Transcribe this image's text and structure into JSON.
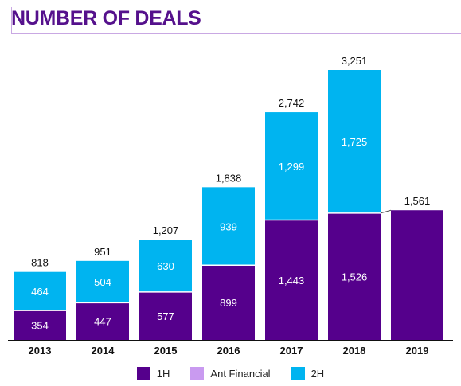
{
  "title": "NUMBER OF DEALS",
  "colors": {
    "h1": "#55008c",
    "ant": "#c99af0",
    "h2": "#00b4f0",
    "text": "#111111",
    "title": "#55118c"
  },
  "legend": [
    {
      "label": "1H",
      "color": "#55008c"
    },
    {
      "label": "Ant Financial",
      "color": "#c99af0"
    },
    {
      "label": "2H",
      "color": "#00b4f0"
    }
  ],
  "chart_data": {
    "type": "bar",
    "stacked": true,
    "title": "NUMBER OF DEALS",
    "xlabel": "",
    "ylabel": "",
    "categories": [
      "2013",
      "2014",
      "2015",
      "2016",
      "2017",
      "2018",
      "2019"
    ],
    "series": [
      {
        "name": "1H",
        "values": [
          354,
          447,
          577,
          899,
          1443,
          1526,
          1561
        ]
      },
      {
        "name": "Ant Financial",
        "values": [
          0,
          0,
          0,
          0,
          0,
          0,
          0
        ]
      },
      {
        "name": "2H",
        "values": [
          464,
          504,
          630,
          939,
          1299,
          1725,
          null
        ]
      }
    ],
    "segment_labels": {
      "1H": [
        "354",
        "447",
        "577",
        "899",
        "1,443",
        "1,526",
        ""
      ],
      "2H": [
        "464",
        "504",
        "630",
        "939",
        "1,299",
        "1,725",
        ""
      ]
    },
    "totals": [
      818,
      951,
      1207,
      1838,
      2742,
      3251,
      1561
    ],
    "total_labels": [
      "818",
      "951",
      "1,207",
      "1,838",
      "2,742",
      "3,251",
      "1,561"
    ],
    "ylim": [
      0,
      3251
    ],
    "grid": false,
    "legend_position": "bottom"
  }
}
